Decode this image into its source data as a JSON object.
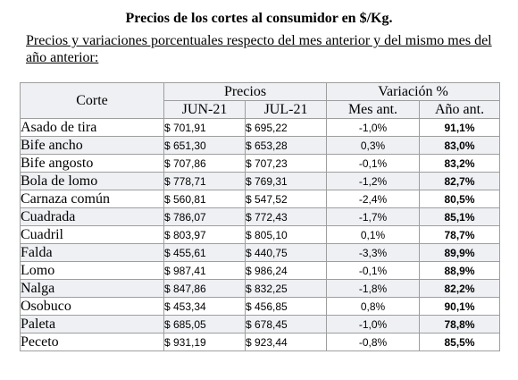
{
  "title": "Precios de los cortes al consumidor en $/Kg.",
  "subtitle": "Precios y variaciones porcentuales respecto del mes anterior y del mismo mes del año anterior:",
  "table": {
    "header_corte": "Corte",
    "header_precios": "Precios",
    "header_variacion": "Variación %",
    "sub_jun": "JUN-21",
    "sub_jul": "JUL-21",
    "sub_mes": "Mes ant.",
    "sub_anio": "Año ant.",
    "rows": [
      {
        "corte": "Asado de tira",
        "jun": "$ 701,91",
        "jul": "$ 695,22",
        "mes": "-1,0%",
        "anio": "91,1%"
      },
      {
        "corte": "Bife ancho",
        "jun": "$ 651,30",
        "jul": "$ 653,28",
        "mes": "0,3%",
        "anio": "83,0%"
      },
      {
        "corte": "Bife angosto",
        "jun": "$ 707,86",
        "jul": "$ 707,23",
        "mes": "-0,1%",
        "anio": "83,2%"
      },
      {
        "corte": "Bola de lomo",
        "jun": "$ 778,71",
        "jul": "$ 769,31",
        "mes": "-1,2%",
        "anio": "82,7%"
      },
      {
        "corte": "Carnaza común",
        "jun": "$ 560,81",
        "jul": "$ 547,52",
        "mes": "-2,4%",
        "anio": "80,5%"
      },
      {
        "corte": "Cuadrada",
        "jun": "$ 786,07",
        "jul": "$ 772,43",
        "mes": "-1,7%",
        "anio": "85,1%"
      },
      {
        "corte": "Cuadril",
        "jun": "$ 803,97",
        "jul": "$ 805,10",
        "mes": "0,1%",
        "anio": "78,7%"
      },
      {
        "corte": "Falda",
        "jun": "$ 455,61",
        "jul": "$ 440,75",
        "mes": "-3,3%",
        "anio": "89,9%"
      },
      {
        "corte": "Lomo",
        "jun": "$ 987,41",
        "jul": "$ 986,24",
        "mes": "-0,1%",
        "anio": "88,9%"
      },
      {
        "corte": "Nalga",
        "jun": "$ 847,86",
        "jul": "$ 832,25",
        "mes": "-1,8%",
        "anio": "82,2%"
      },
      {
        "corte": "Osobuco",
        "jun": "$ 453,34",
        "jul": "$ 456,85",
        "mes": "0,8%",
        "anio": "90,1%"
      },
      {
        "corte": "Paleta",
        "jun": "$ 685,05",
        "jul": "$ 678,45",
        "mes": "-1,0%",
        "anio": "78,8%"
      },
      {
        "corte": "Peceto",
        "jun": "$ 931,19",
        "jul": "$ 923,44",
        "mes": "-0,8%",
        "anio": "85,5%"
      }
    ]
  }
}
